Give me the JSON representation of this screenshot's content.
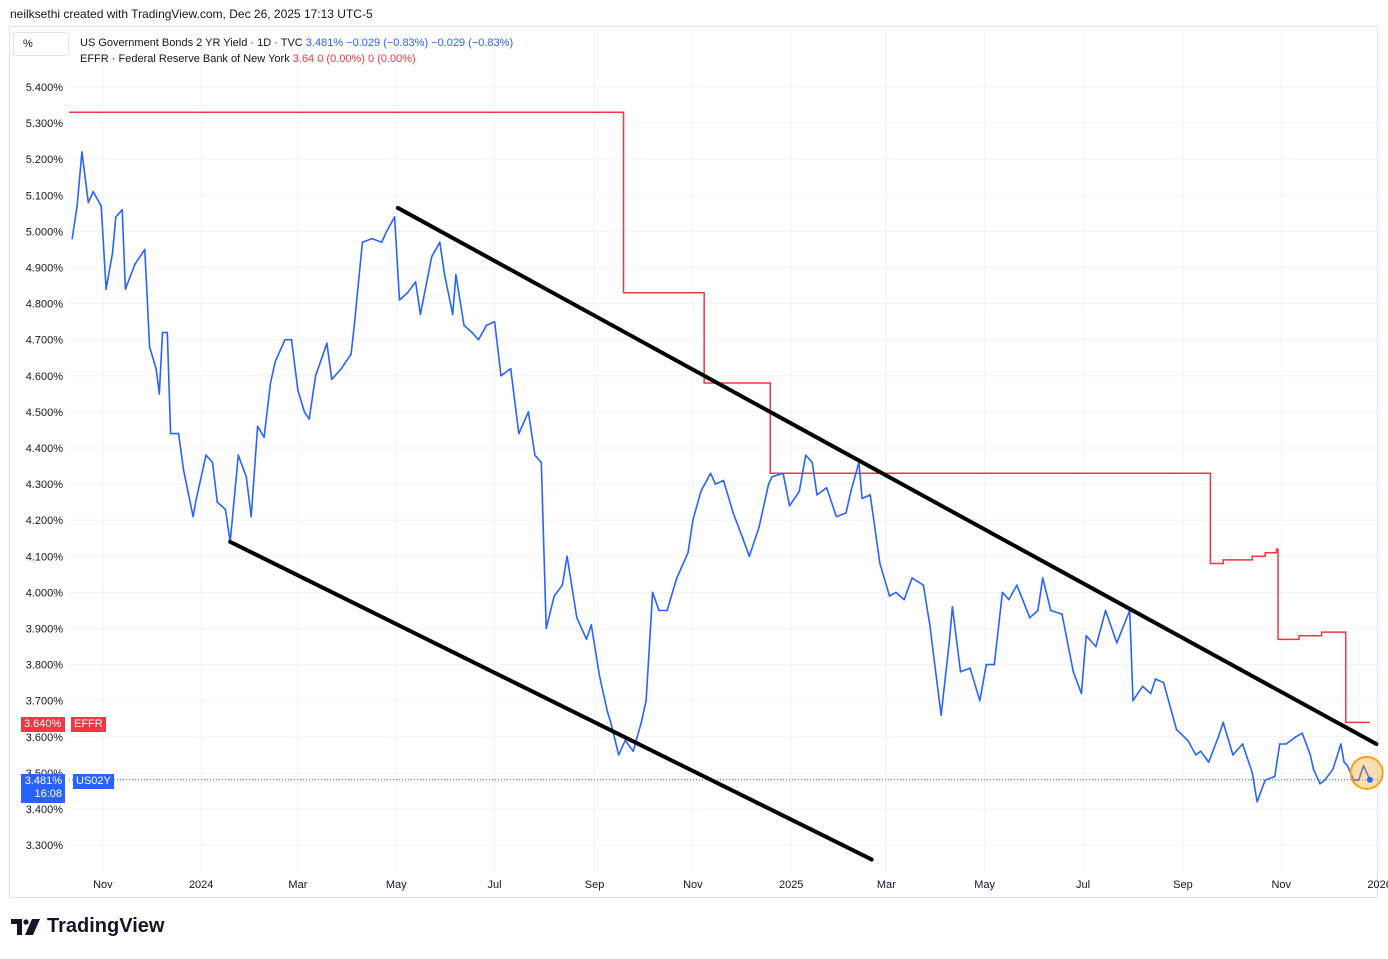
{
  "header": {
    "caption": "neilksethi created with TradingView.com, Dec 26, 2025 17:13 UTC-5"
  },
  "toolbar": {
    "scale_label": "%"
  },
  "legend": {
    "series1": {
      "name": "US Government Bonds 2 YR Yield · 1D · TVC",
      "values": "3.481%  −0.029 (−0.83%)  −0.029 (−0.83%)"
    },
    "series2": {
      "name": "EFFR · Federal Reserve Bank of New York",
      "values": "3.64  0 (0.00%)  0 (0.00%)"
    }
  },
  "price_tags": {
    "effr": {
      "value": "3.640%",
      "symbol": "EFFR"
    },
    "us02y": {
      "value": "3.481%",
      "countdown": "16:08",
      "symbol": "US02Y"
    }
  },
  "branding": {
    "logo_text": "TradingView"
  },
  "colors": {
    "yield": "#2962ff",
    "effr": "#f23645",
    "trendline": "#000000",
    "highlight": "#f7a21b"
  },
  "chart_data": {
    "type": "line",
    "title": "",
    "ylim": [
      3.24,
      5.46
    ],
    "y_unit": "%",
    "y_ticks": [
      "5.400%",
      "5.300%",
      "5.200%",
      "5.100%",
      "5.000%",
      "4.900%",
      "4.800%",
      "4.700%",
      "4.600%",
      "4.500%",
      "4.400%",
      "4.300%",
      "4.200%",
      "4.100%",
      "4.000%",
      "3.900%",
      "3.800%",
      "3.700%",
      "3.600%",
      "3.500%",
      "3.400%",
      "3.300%"
    ],
    "y_tick_values": [
      5.4,
      5.3,
      5.2,
      5.1,
      5.0,
      4.9,
      4.8,
      4.7,
      4.6,
      4.5,
      4.4,
      4.3,
      4.2,
      4.1,
      4.0,
      3.9,
      3.8,
      3.7,
      3.6,
      3.5,
      3.4,
      3.3
    ],
    "x_range": [
      "2023-10-11",
      "2025-12-31"
    ],
    "x_ticks": [
      {
        "label": "Nov",
        "date": "2023-11-01"
      },
      {
        "label": "2024",
        "date": "2024-01-01"
      },
      {
        "label": "Mar",
        "date": "2024-03-01"
      },
      {
        "label": "May",
        "date": "2024-05-01"
      },
      {
        "label": "Jul",
        "date": "2024-07-01"
      },
      {
        "label": "Sep",
        "date": "2024-09-01"
      },
      {
        "label": "Nov",
        "date": "2024-11-01"
      },
      {
        "label": "2025",
        "date": "2025-01-01"
      },
      {
        "label": "Mar",
        "date": "2025-03-01"
      },
      {
        "label": "May",
        "date": "2025-05-01"
      },
      {
        "label": "Jul",
        "date": "2025-07-01"
      },
      {
        "label": "Sep",
        "date": "2025-09-01"
      },
      {
        "label": "Nov",
        "date": "2025-11-01"
      },
      {
        "label": "2026",
        "date": "2026-01-01"
      }
    ],
    "series": [
      {
        "name": "US Government Bonds 2 YR Yield · 1D · TVC",
        "style": "line",
        "points": [
          [
            "2023-10-13",
            4.98
          ],
          [
            "2023-10-16",
            5.07
          ],
          [
            "2023-10-19",
            5.22
          ],
          [
            "2023-10-23",
            5.08
          ],
          [
            "2023-10-26",
            5.11
          ],
          [
            "2023-10-31",
            5.07
          ],
          [
            "2023-11-03",
            4.84
          ],
          [
            "2023-11-07",
            4.94
          ],
          [
            "2023-11-09",
            5.04
          ],
          [
            "2023-11-13",
            5.06
          ],
          [
            "2023-11-15",
            4.84
          ],
          [
            "2023-11-21",
            4.91
          ],
          [
            "2023-11-27",
            4.95
          ],
          [
            "2023-11-30",
            4.68
          ],
          [
            "2023-12-04",
            4.62
          ],
          [
            "2023-12-06",
            4.55
          ],
          [
            "2023-12-08",
            4.72
          ],
          [
            "2023-12-11",
            4.72
          ],
          [
            "2023-12-13",
            4.44
          ],
          [
            "2023-12-18",
            4.44
          ],
          [
            "2023-12-21",
            4.34
          ],
          [
            "2023-12-27",
            4.21
          ],
          [
            "2023-12-29",
            4.26
          ],
          [
            "2024-01-04",
            4.38
          ],
          [
            "2024-01-08",
            4.36
          ],
          [
            "2024-01-11",
            4.25
          ],
          [
            "2024-01-16",
            4.23
          ],
          [
            "2024-01-19",
            4.14
          ],
          [
            "2024-01-24",
            4.38
          ],
          [
            "2024-01-29",
            4.32
          ],
          [
            "2024-02-01",
            4.21
          ],
          [
            "2024-02-05",
            4.46
          ],
          [
            "2024-02-09",
            4.43
          ],
          [
            "2024-02-13",
            4.58
          ],
          [
            "2024-02-16",
            4.64
          ],
          [
            "2024-02-22",
            4.7
          ],
          [
            "2024-02-26",
            4.7
          ],
          [
            "2024-03-01",
            4.56
          ],
          [
            "2024-03-05",
            4.5
          ],
          [
            "2024-03-08",
            4.48
          ],
          [
            "2024-03-12",
            4.6
          ],
          [
            "2024-03-19",
            4.69
          ],
          [
            "2024-03-22",
            4.59
          ],
          [
            "2024-03-28",
            4.62
          ],
          [
            "2024-04-03",
            4.66
          ],
          [
            "2024-04-05",
            4.74
          ],
          [
            "2024-04-10",
            4.97
          ],
          [
            "2024-04-16",
            4.98
          ],
          [
            "2024-04-22",
            4.97
          ],
          [
            "2024-04-25",
            5.0
          ],
          [
            "2024-04-30",
            5.04
          ],
          [
            "2024-05-03",
            4.81
          ],
          [
            "2024-05-08",
            4.83
          ],
          [
            "2024-05-13",
            4.86
          ],
          [
            "2024-05-16",
            4.77
          ],
          [
            "2024-05-23",
            4.93
          ],
          [
            "2024-05-28",
            4.97
          ],
          [
            "2024-05-31",
            4.88
          ],
          [
            "2024-06-05",
            4.77
          ],
          [
            "2024-06-07",
            4.88
          ],
          [
            "2024-06-12",
            4.74
          ],
          [
            "2024-06-17",
            4.72
          ],
          [
            "2024-06-21",
            4.7
          ],
          [
            "2024-06-26",
            4.74
          ],
          [
            "2024-07-01",
            4.75
          ],
          [
            "2024-07-05",
            4.6
          ],
          [
            "2024-07-11",
            4.62
          ],
          [
            "2024-07-16",
            4.44
          ],
          [
            "2024-07-22",
            4.5
          ],
          [
            "2024-07-26",
            4.38
          ],
          [
            "2024-07-30",
            4.36
          ],
          [
            "2024-08-02",
            3.9
          ],
          [
            "2024-08-07",
            3.99
          ],
          [
            "2024-08-12",
            4.02
          ],
          [
            "2024-08-15",
            4.1
          ],
          [
            "2024-08-21",
            3.93
          ],
          [
            "2024-08-27",
            3.87
          ],
          [
            "2024-08-30",
            3.91
          ],
          [
            "2024-09-04",
            3.77
          ],
          [
            "2024-09-09",
            3.67
          ],
          [
            "2024-09-11",
            3.64
          ],
          [
            "2024-09-16",
            3.55
          ],
          [
            "2024-09-20",
            3.59
          ],
          [
            "2024-09-25",
            3.56
          ],
          [
            "2024-09-30",
            3.64
          ],
          [
            "2024-10-03",
            3.7
          ],
          [
            "2024-10-07",
            4.0
          ],
          [
            "2024-10-11",
            3.95
          ],
          [
            "2024-10-16",
            3.95
          ],
          [
            "2024-10-22",
            4.04
          ],
          [
            "2024-10-29",
            4.11
          ],
          [
            "2024-11-01",
            4.2
          ],
          [
            "2024-11-06",
            4.28
          ],
          [
            "2024-11-12",
            4.33
          ],
          [
            "2024-11-15",
            4.3
          ],
          [
            "2024-11-20",
            4.31
          ],
          [
            "2024-11-26",
            4.22
          ],
          [
            "2024-12-02",
            4.15
          ],
          [
            "2024-12-06",
            4.1
          ],
          [
            "2024-12-12",
            4.18
          ],
          [
            "2024-12-18",
            4.3
          ],
          [
            "2024-12-20",
            4.32
          ],
          [
            "2024-12-27",
            4.33
          ],
          [
            "2024-12-31",
            4.24
          ],
          [
            "2025-01-06",
            4.28
          ],
          [
            "2025-01-10",
            4.38
          ],
          [
            "2025-01-14",
            4.36
          ],
          [
            "2025-01-17",
            4.27
          ],
          [
            "2025-01-23",
            4.29
          ],
          [
            "2025-01-29",
            4.21
          ],
          [
            "2025-02-04",
            4.22
          ],
          [
            "2025-02-07",
            4.28
          ],
          [
            "2025-02-12",
            4.36
          ],
          [
            "2025-02-14",
            4.26
          ],
          [
            "2025-02-19",
            4.27
          ],
          [
            "2025-02-25",
            4.08
          ],
          [
            "2025-03-03",
            3.99
          ],
          [
            "2025-03-07",
            4.0
          ],
          [
            "2025-03-12",
            3.98
          ],
          [
            "2025-03-17",
            4.04
          ],
          [
            "2025-03-24",
            4.02
          ],
          [
            "2025-03-28",
            3.91
          ],
          [
            "2025-04-04",
            3.66
          ],
          [
            "2025-04-09",
            3.86
          ],
          [
            "2025-04-11",
            3.96
          ],
          [
            "2025-04-16",
            3.78
          ],
          [
            "2025-04-22",
            3.79
          ],
          [
            "2025-04-28",
            3.7
          ],
          [
            "2025-05-02",
            3.8
          ],
          [
            "2025-05-07",
            3.8
          ],
          [
            "2025-05-12",
            4.0
          ],
          [
            "2025-05-16",
            3.98
          ],
          [
            "2025-05-21",
            4.02
          ],
          [
            "2025-05-29",
            3.93
          ],
          [
            "2025-06-03",
            3.95
          ],
          [
            "2025-06-06",
            4.04
          ],
          [
            "2025-06-11",
            3.95
          ],
          [
            "2025-06-18",
            3.94
          ],
          [
            "2025-06-25",
            3.78
          ],
          [
            "2025-06-30",
            3.72
          ],
          [
            "2025-07-03",
            3.88
          ],
          [
            "2025-07-09",
            3.85
          ],
          [
            "2025-07-15",
            3.95
          ],
          [
            "2025-07-22",
            3.86
          ],
          [
            "2025-07-30",
            3.95
          ],
          [
            "2025-08-01",
            3.7
          ],
          [
            "2025-08-07",
            3.74
          ],
          [
            "2025-08-12",
            3.72
          ],
          [
            "2025-08-15",
            3.76
          ],
          [
            "2025-08-20",
            3.75
          ],
          [
            "2025-08-28",
            3.62
          ],
          [
            "2025-09-04",
            3.59
          ],
          [
            "2025-09-09",
            3.55
          ],
          [
            "2025-09-12",
            3.56
          ],
          [
            "2025-09-17",
            3.53
          ],
          [
            "2025-09-23",
            3.6
          ],
          [
            "2025-09-26",
            3.64
          ],
          [
            "2025-10-02",
            3.55
          ],
          [
            "2025-10-08",
            3.58
          ],
          [
            "2025-10-14",
            3.5
          ],
          [
            "2025-10-17",
            3.42
          ],
          [
            "2025-10-22",
            3.48
          ],
          [
            "2025-10-28",
            3.49
          ],
          [
            "2025-10-31",
            3.58
          ],
          [
            "2025-11-04",
            3.58
          ],
          [
            "2025-11-10",
            3.6
          ],
          [
            "2025-11-14",
            3.61
          ],
          [
            "2025-11-19",
            3.55
          ],
          [
            "2025-11-21",
            3.51
          ],
          [
            "2025-11-25",
            3.47
          ],
          [
            "2025-11-28",
            3.48
          ],
          [
            "2025-12-03",
            3.51
          ],
          [
            "2025-12-08",
            3.58
          ],
          [
            "2025-12-10",
            3.53
          ],
          [
            "2025-12-12",
            3.52
          ],
          [
            "2025-12-16",
            3.48
          ],
          [
            "2025-12-19",
            3.48
          ],
          [
            "2025-12-22",
            3.52
          ],
          [
            "2025-12-26",
            3.481
          ]
        ]
      },
      {
        "name": "EFFR · Federal Reserve Bank of New York",
        "style": "step",
        "points": [
          [
            "2023-10-11",
            5.33
          ],
          [
            "2024-09-18",
            5.33
          ],
          [
            "2024-09-19",
            4.83
          ],
          [
            "2024-11-07",
            4.83
          ],
          [
            "2024-11-08",
            4.58
          ],
          [
            "2024-12-18",
            4.58
          ],
          [
            "2024-12-19",
            4.33
          ],
          [
            "2025-09-17",
            4.33
          ],
          [
            "2025-09-18",
            4.08
          ],
          [
            "2025-09-26",
            4.09
          ],
          [
            "2025-10-14",
            4.1
          ],
          [
            "2025-10-22",
            4.11
          ],
          [
            "2025-10-29",
            4.12
          ],
          [
            "2025-10-30",
            3.87
          ],
          [
            "2025-11-02",
            3.87
          ],
          [
            "2025-11-12",
            3.88
          ],
          [
            "2025-11-26",
            3.89
          ],
          [
            "2025-12-10",
            3.89
          ],
          [
            "2025-12-11",
            3.64
          ],
          [
            "2025-12-26",
            3.64
          ]
        ]
      }
    ],
    "annotations": [
      {
        "type": "trendline",
        "from": [
          "2024-05-02",
          5.065
        ],
        "to": [
          "2025-12-30",
          3.58
        ]
      },
      {
        "type": "trendline",
        "from": [
          "2024-01-19",
          4.14
        ],
        "to": [
          "2025-02-20",
          3.26
        ]
      },
      {
        "type": "circle",
        "at": [
          "2025-12-24",
          3.5
        ]
      }
    ]
  }
}
